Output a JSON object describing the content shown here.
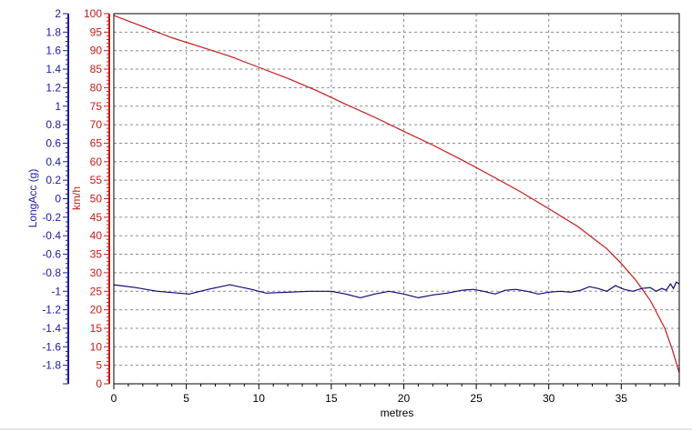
{
  "chart_data": {
    "type": "line",
    "xlabel": "metres",
    "xlim": [
      0,
      39
    ],
    "xticks": [
      0,
      5,
      10,
      15,
      20,
      25,
      30,
      35
    ],
    "grid": true,
    "axes": {
      "left": {
        "label": "LongAcc (g)",
        "color": "#1a1aa6",
        "ylim": [
          -2,
          2
        ],
        "ticks": [
          2,
          1.8,
          1.6,
          1.4,
          1.2,
          1,
          0.8,
          0.6,
          0.4,
          0.2,
          0,
          -0.2,
          -0.4,
          -0.6,
          -0.8,
          -1,
          -1.2,
          -1.4,
          -1.6,
          -1.8
        ]
      },
      "right": {
        "label": "km/h",
        "color": "#c81818",
        "ylim": [
          0,
          100
        ],
        "ticks": [
          100,
          95,
          90,
          85,
          80,
          75,
          70,
          65,
          60,
          55,
          50,
          45,
          40,
          35,
          30,
          25,
          20,
          15,
          10,
          5,
          0
        ]
      }
    },
    "series": [
      {
        "axis": "right",
        "color": "#c81818",
        "x": [
          0,
          2,
          4,
          6,
          8,
          10,
          12,
          14,
          16,
          18,
          20,
          22,
          24,
          26,
          28,
          30,
          32,
          34,
          35,
          36,
          37,
          38,
          38.5,
          39
        ],
        "y": [
          99.5,
          96.5,
          93.5,
          91,
          88.5,
          85.5,
          82.5,
          79.2,
          75.5,
          72,
          68.2,
          64.5,
          60.5,
          56.3,
          52,
          47.3,
          42.5,
          36.5,
          32.5,
          28,
          22.5,
          15,
          9.5,
          3
        ]
      },
      {
        "axis": "left",
        "color": "#0a0a78",
        "x": [
          0,
          1.5,
          3,
          5.2,
          6.5,
          8,
          9.5,
          10.5,
          12,
          13.5,
          15,
          16,
          17,
          18,
          19,
          20,
          21,
          22,
          23,
          24,
          24.8,
          25.5,
          26.3,
          27,
          27.7,
          28.5,
          29.3,
          30,
          30.8,
          31.5,
          32.2,
          32.8,
          33.4,
          34,
          34.6,
          35.2,
          35.8,
          36.4,
          37,
          37.4,
          37.8,
          38.1,
          38.4,
          38.6,
          38.8,
          39
        ],
        "y": [
          -0.93,
          -0.96,
          -1.0,
          -1.03,
          -0.98,
          -0.93,
          -0.98,
          -1.02,
          -1.01,
          -1.0,
          -1.0,
          -1.03,
          -1.07,
          -1.03,
          -1.0,
          -1.03,
          -1.07,
          -1.04,
          -1.02,
          -0.99,
          -0.98,
          -1.0,
          -1.03,
          -0.99,
          -0.98,
          -1.0,
          -1.03,
          -1.01,
          -1.0,
          -1.01,
          -0.99,
          -0.95,
          -0.97,
          -1.0,
          -0.94,
          -0.98,
          -1.0,
          -0.97,
          -0.96,
          -1.0,
          -0.97,
          -0.99,
          -0.92,
          -0.97,
          -0.9,
          -0.92
        ]
      }
    ]
  }
}
